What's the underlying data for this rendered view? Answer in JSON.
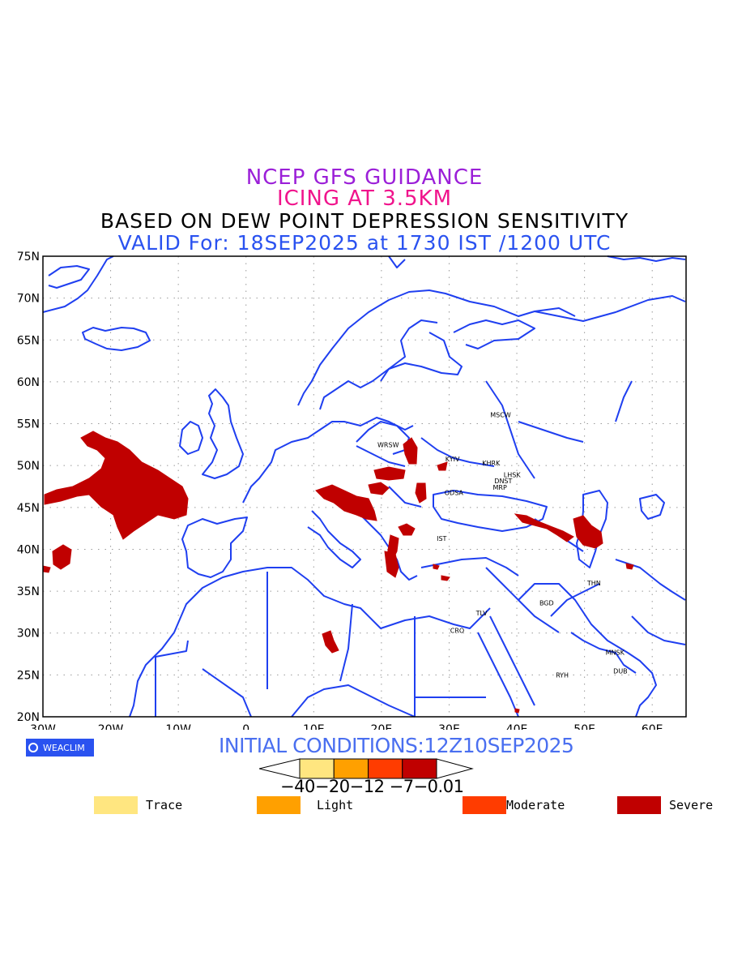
{
  "titles": {
    "line1": "NCEP GFS GUIDANCE",
    "line2": "ICING AT 3.5KM",
    "line3": "BASED ON DEW POINT DEPRESSION SENSITIVITY",
    "line4": "VALID For: 18SEP2025 at 1730 IST /1200 UTC"
  },
  "map": {
    "lat_labels": [
      "75N",
      "70N",
      "65N",
      "60N",
      "55N",
      "50N",
      "45N",
      "40N",
      "35N",
      "30N",
      "25N",
      "20N"
    ],
    "lon_labels": [
      "30W",
      "20W",
      "10W",
      "0",
      "10E",
      "20E",
      "30E",
      "40E",
      "50E",
      "60E"
    ],
    "coastline_color": "#1f3ff0",
    "cities": [
      {
        "name": "MSCW",
        "lon": 37.6,
        "lat": 55.8
      },
      {
        "name": "WRSW",
        "lon": 21.0,
        "lat": 52.2
      },
      {
        "name": "KYIV",
        "lon": 30.5,
        "lat": 50.5
      },
      {
        "name": "KHRK",
        "lon": 36.2,
        "lat": 50.0
      },
      {
        "name": "LHSK",
        "lon": 39.3,
        "lat": 48.6
      },
      {
        "name": "DNST",
        "lon": 38.0,
        "lat": 47.9
      },
      {
        "name": "MRP",
        "lon": 37.5,
        "lat": 47.1
      },
      {
        "name": "ODSA",
        "lon": 30.7,
        "lat": 46.5
      },
      {
        "name": "IST",
        "lon": 28.9,
        "lat": 41.0
      },
      {
        "name": "THN",
        "lon": 51.4,
        "lat": 35.7
      },
      {
        "name": "BGD",
        "lon": 44.4,
        "lat": 33.3
      },
      {
        "name": "TLV",
        "lon": 34.8,
        "lat": 32.1
      },
      {
        "name": "CRO",
        "lon": 31.2,
        "lat": 30.0
      },
      {
        "name": "MNSK",
        "lon": 54.5,
        "lat": 27.4
      },
      {
        "name": "RYH",
        "lon": 46.7,
        "lat": 24.7
      },
      {
        "name": "DUB",
        "lon": 55.3,
        "lat": 25.2
      }
    ]
  },
  "icing": {
    "severe_color": "#c00000"
  },
  "footer": {
    "logo_text": "WEACLIM",
    "initial_conditions": "INITIAL CONDITIONS:12Z10SEP2025",
    "colorbar_labels": "−40−20−12 −7−0.01",
    "colorbar_colors": [
      "#ffe680",
      "#ffa000",
      "#ff3c00",
      "#c00000"
    ]
  },
  "legend": [
    {
      "label": "Trace",
      "color": "#ffe680"
    },
    {
      "label": "Light",
      "color": "#ffa000"
    },
    {
      "label": "Moderate",
      "color": "#ff3c00"
    },
    {
      "label": "Severe",
      "color": "#c00000"
    }
  ]
}
